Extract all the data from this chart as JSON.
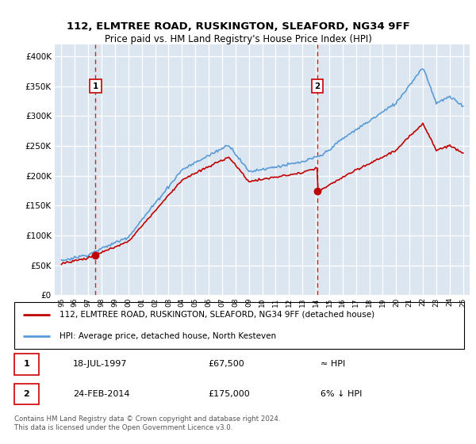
{
  "title": "112, ELMTREE ROAD, RUSKINGTON, SLEAFORD, NG34 9FF",
  "subtitle": "Price paid vs. HM Land Registry's House Price Index (HPI)",
  "legend_line1": "112, ELMTREE ROAD, RUSKINGTON, SLEAFORD, NG34 9FF (detached house)",
  "legend_line2": "HPI: Average price, detached house, North Kesteven",
  "annotation1_date": "18-JUL-1997",
  "annotation1_price": "£67,500",
  "annotation1_hpi": "≈ HPI",
  "annotation2_date": "24-FEB-2014",
  "annotation2_price": "£175,000",
  "annotation2_hpi": "6% ↓ HPI",
  "footnote": "Contains HM Land Registry data © Crown copyright and database right 2024.\nThis data is licensed under the Open Government Licence v3.0.",
  "sale1_year": 1997.54,
  "sale1_value": 67500,
  "sale2_year": 2014.12,
  "sale2_value": 175000,
  "hpi_color": "#5b9bd5",
  "price_color": "#c00000",
  "dashed_line_color": "#cc0000",
  "bg_color": "#dce6f1",
  "ylim_min": 0,
  "ylim_max": 420000,
  "yticks": [
    0,
    50000,
    100000,
    150000,
    200000,
    250000,
    300000,
    350000,
    400000
  ],
  "xlim_min": 1994.5,
  "xlim_max": 2025.5,
  "xtick_years": [
    1995,
    1996,
    1997,
    1998,
    1999,
    2000,
    2001,
    2002,
    2003,
    2004,
    2005,
    2006,
    2007,
    2008,
    2009,
    2010,
    2011,
    2012,
    2013,
    2014,
    2015,
    2016,
    2017,
    2018,
    2019,
    2020,
    2021,
    2022,
    2023,
    2024,
    2025
  ]
}
